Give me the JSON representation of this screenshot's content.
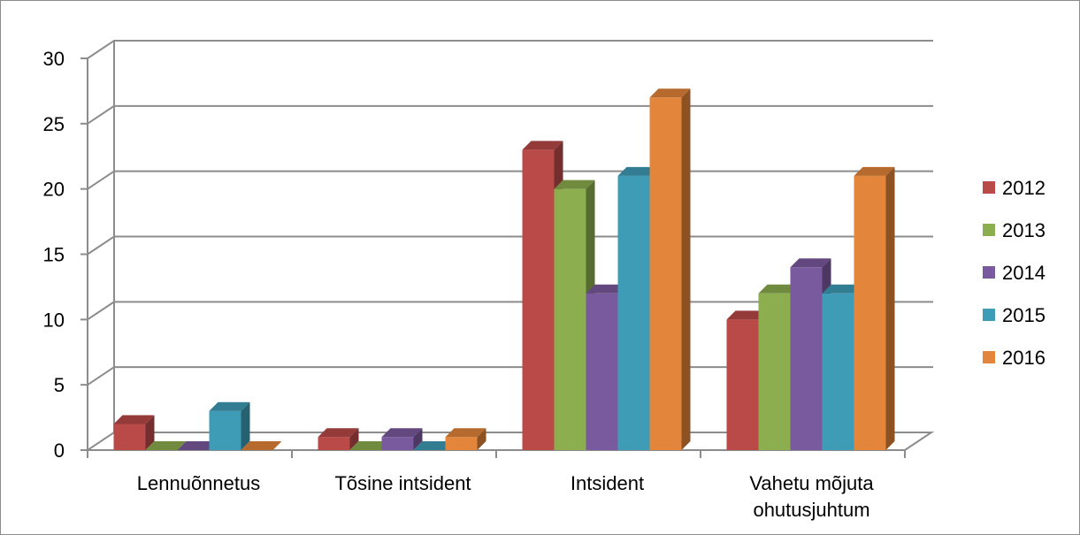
{
  "chart_data": {
    "type": "bar",
    "categories": [
      "Lennuõnnetus",
      "Tõsine intsident",
      "Intsident",
      "Vahetu mõjuta ohutusjuhtum"
    ],
    "series": [
      {
        "name": "2012",
        "color": "#B94A48",
        "values": [
          2,
          1,
          23,
          10
        ]
      },
      {
        "name": "2013",
        "color": "#8DAE4E",
        "values": [
          0,
          0,
          20,
          12
        ]
      },
      {
        "name": "2014",
        "color": "#7A5A9E",
        "values": [
          0,
          1,
          12,
          14
        ]
      },
      {
        "name": "2015",
        "color": "#3E9CB6",
        "values": [
          3,
          0,
          21,
          12
        ]
      },
      {
        "name": "2016",
        "color": "#E3853A",
        "values": [
          0,
          1,
          27,
          21
        ]
      }
    ],
    "yticks": [
      0,
      5,
      10,
      15,
      20,
      25,
      30
    ],
    "ylim": [
      0,
      30
    ],
    "grid": true,
    "legend": "right",
    "title": "",
    "xlabel": "",
    "ylabel": ""
  }
}
